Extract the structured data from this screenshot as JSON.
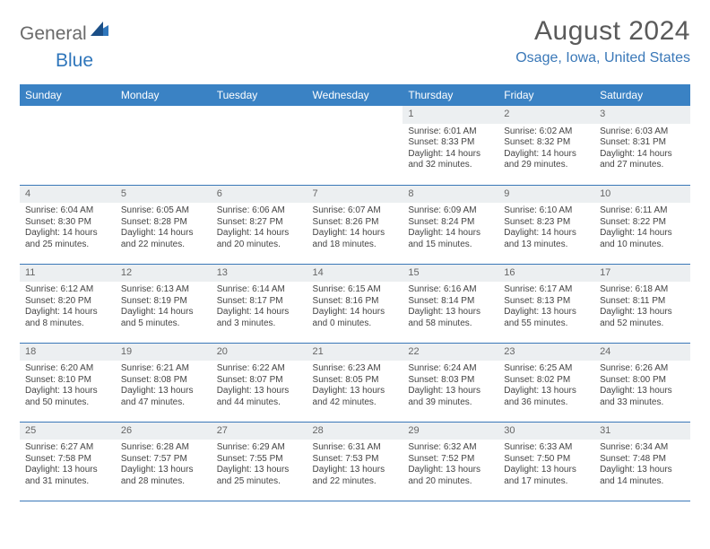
{
  "logo": {
    "text1": "General",
    "text2": "Blue"
  },
  "title": "August 2024",
  "location": "Osage, Iowa, United States",
  "colors": {
    "header_bg": "#3a82c4",
    "header_text": "#ffffff",
    "accent": "#3a78b8",
    "daynum_bg": "#eceff1",
    "text": "#444444",
    "logo_gray": "#6a6a6a"
  },
  "day_headers": [
    "Sunday",
    "Monday",
    "Tuesday",
    "Wednesday",
    "Thursday",
    "Friday",
    "Saturday"
  ],
  "weeks": [
    [
      {
        "n": "",
        "sr": "",
        "ss": "",
        "d1": "",
        "d2": "",
        "empty": true
      },
      {
        "n": "",
        "sr": "",
        "ss": "",
        "d1": "",
        "d2": "",
        "empty": true
      },
      {
        "n": "",
        "sr": "",
        "ss": "",
        "d1": "",
        "d2": "",
        "empty": true
      },
      {
        "n": "",
        "sr": "",
        "ss": "",
        "d1": "",
        "d2": "",
        "empty": true
      },
      {
        "n": "1",
        "sr": "Sunrise: 6:01 AM",
        "ss": "Sunset: 8:33 PM",
        "d1": "Daylight: 14 hours",
        "d2": "and 32 minutes."
      },
      {
        "n": "2",
        "sr": "Sunrise: 6:02 AM",
        "ss": "Sunset: 8:32 PM",
        "d1": "Daylight: 14 hours",
        "d2": "and 29 minutes."
      },
      {
        "n": "3",
        "sr": "Sunrise: 6:03 AM",
        "ss": "Sunset: 8:31 PM",
        "d1": "Daylight: 14 hours",
        "d2": "and 27 minutes."
      }
    ],
    [
      {
        "n": "4",
        "sr": "Sunrise: 6:04 AM",
        "ss": "Sunset: 8:30 PM",
        "d1": "Daylight: 14 hours",
        "d2": "and 25 minutes."
      },
      {
        "n": "5",
        "sr": "Sunrise: 6:05 AM",
        "ss": "Sunset: 8:28 PM",
        "d1": "Daylight: 14 hours",
        "d2": "and 22 minutes."
      },
      {
        "n": "6",
        "sr": "Sunrise: 6:06 AM",
        "ss": "Sunset: 8:27 PM",
        "d1": "Daylight: 14 hours",
        "d2": "and 20 minutes."
      },
      {
        "n": "7",
        "sr": "Sunrise: 6:07 AM",
        "ss": "Sunset: 8:26 PM",
        "d1": "Daylight: 14 hours",
        "d2": "and 18 minutes."
      },
      {
        "n": "8",
        "sr": "Sunrise: 6:09 AM",
        "ss": "Sunset: 8:24 PM",
        "d1": "Daylight: 14 hours",
        "d2": "and 15 minutes."
      },
      {
        "n": "9",
        "sr": "Sunrise: 6:10 AM",
        "ss": "Sunset: 8:23 PM",
        "d1": "Daylight: 14 hours",
        "d2": "and 13 minutes."
      },
      {
        "n": "10",
        "sr": "Sunrise: 6:11 AM",
        "ss": "Sunset: 8:22 PM",
        "d1": "Daylight: 14 hours",
        "d2": "and 10 minutes."
      }
    ],
    [
      {
        "n": "11",
        "sr": "Sunrise: 6:12 AM",
        "ss": "Sunset: 8:20 PM",
        "d1": "Daylight: 14 hours",
        "d2": "and 8 minutes."
      },
      {
        "n": "12",
        "sr": "Sunrise: 6:13 AM",
        "ss": "Sunset: 8:19 PM",
        "d1": "Daylight: 14 hours",
        "d2": "and 5 minutes."
      },
      {
        "n": "13",
        "sr": "Sunrise: 6:14 AM",
        "ss": "Sunset: 8:17 PM",
        "d1": "Daylight: 14 hours",
        "d2": "and 3 minutes."
      },
      {
        "n": "14",
        "sr": "Sunrise: 6:15 AM",
        "ss": "Sunset: 8:16 PM",
        "d1": "Daylight: 14 hours",
        "d2": "and 0 minutes."
      },
      {
        "n": "15",
        "sr": "Sunrise: 6:16 AM",
        "ss": "Sunset: 8:14 PM",
        "d1": "Daylight: 13 hours",
        "d2": "and 58 minutes."
      },
      {
        "n": "16",
        "sr": "Sunrise: 6:17 AM",
        "ss": "Sunset: 8:13 PM",
        "d1": "Daylight: 13 hours",
        "d2": "and 55 minutes."
      },
      {
        "n": "17",
        "sr": "Sunrise: 6:18 AM",
        "ss": "Sunset: 8:11 PM",
        "d1": "Daylight: 13 hours",
        "d2": "and 52 minutes."
      }
    ],
    [
      {
        "n": "18",
        "sr": "Sunrise: 6:20 AM",
        "ss": "Sunset: 8:10 PM",
        "d1": "Daylight: 13 hours",
        "d2": "and 50 minutes."
      },
      {
        "n": "19",
        "sr": "Sunrise: 6:21 AM",
        "ss": "Sunset: 8:08 PM",
        "d1": "Daylight: 13 hours",
        "d2": "and 47 minutes."
      },
      {
        "n": "20",
        "sr": "Sunrise: 6:22 AM",
        "ss": "Sunset: 8:07 PM",
        "d1": "Daylight: 13 hours",
        "d2": "and 44 minutes."
      },
      {
        "n": "21",
        "sr": "Sunrise: 6:23 AM",
        "ss": "Sunset: 8:05 PM",
        "d1": "Daylight: 13 hours",
        "d2": "and 42 minutes."
      },
      {
        "n": "22",
        "sr": "Sunrise: 6:24 AM",
        "ss": "Sunset: 8:03 PM",
        "d1": "Daylight: 13 hours",
        "d2": "and 39 minutes."
      },
      {
        "n": "23",
        "sr": "Sunrise: 6:25 AM",
        "ss": "Sunset: 8:02 PM",
        "d1": "Daylight: 13 hours",
        "d2": "and 36 minutes."
      },
      {
        "n": "24",
        "sr": "Sunrise: 6:26 AM",
        "ss": "Sunset: 8:00 PM",
        "d1": "Daylight: 13 hours",
        "d2": "and 33 minutes."
      }
    ],
    [
      {
        "n": "25",
        "sr": "Sunrise: 6:27 AM",
        "ss": "Sunset: 7:58 PM",
        "d1": "Daylight: 13 hours",
        "d2": "and 31 minutes."
      },
      {
        "n": "26",
        "sr": "Sunrise: 6:28 AM",
        "ss": "Sunset: 7:57 PM",
        "d1": "Daylight: 13 hours",
        "d2": "and 28 minutes."
      },
      {
        "n": "27",
        "sr": "Sunrise: 6:29 AM",
        "ss": "Sunset: 7:55 PM",
        "d1": "Daylight: 13 hours",
        "d2": "and 25 minutes."
      },
      {
        "n": "28",
        "sr": "Sunrise: 6:31 AM",
        "ss": "Sunset: 7:53 PM",
        "d1": "Daylight: 13 hours",
        "d2": "and 22 minutes."
      },
      {
        "n": "29",
        "sr": "Sunrise: 6:32 AM",
        "ss": "Sunset: 7:52 PM",
        "d1": "Daylight: 13 hours",
        "d2": "and 20 minutes."
      },
      {
        "n": "30",
        "sr": "Sunrise: 6:33 AM",
        "ss": "Sunset: 7:50 PM",
        "d1": "Daylight: 13 hours",
        "d2": "and 17 minutes."
      },
      {
        "n": "31",
        "sr": "Sunrise: 6:34 AM",
        "ss": "Sunset: 7:48 PM",
        "d1": "Daylight: 13 hours",
        "d2": "and 14 minutes."
      }
    ]
  ]
}
